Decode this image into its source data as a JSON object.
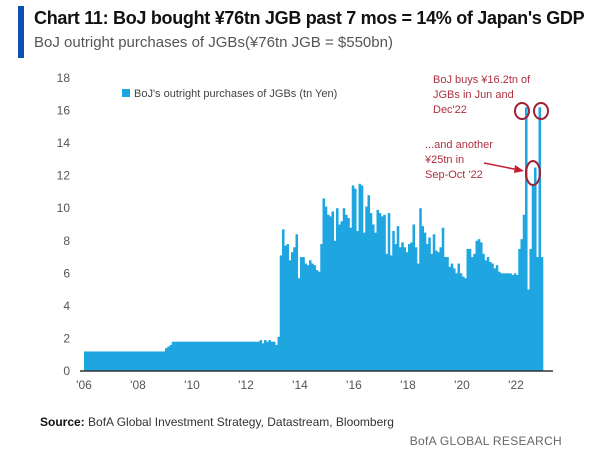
{
  "header": {
    "title": "Chart 11: BoJ bought ¥76tn JGB past 7 mos = 14% of Japan's GDP",
    "subtitle": "BoJ outright purchases of JGBs(¥76tn JGB = $550bn)"
  },
  "footer": {
    "source_label": "Source:",
    "source_text": " BofA Global Investment Strategy, Datastream, Bloomberg",
    "brand": "BofA GLOBAL RESEARCH"
  },
  "colors": {
    "bar": "#1fa6e0",
    "accent": "#0b4fb3",
    "annotation": "#b03040"
  },
  "chart_data": {
    "type": "bar",
    "title": "BoJ outright purchases of JGBs",
    "xlabel": "",
    "ylabel": "",
    "ylim": [
      0,
      18
    ],
    "yticks": [
      0,
      2,
      4,
      6,
      8,
      10,
      12,
      14,
      16,
      18
    ],
    "xtick_labels": [
      "'06",
      "'08",
      "'10",
      "'12",
      "'14",
      "'16",
      "'18",
      "'20",
      "'22"
    ],
    "xtick_years": [
      2006,
      2008,
      2010,
      2012,
      2014,
      2016,
      2018,
      2020,
      2022
    ],
    "x_start": 2006,
    "frequency": "monthly",
    "legend": {
      "label": "BoJ's outright purchases of JGBs (tn Yen)",
      "placement": "top-left"
    },
    "annotations": [
      {
        "text": [
          "BoJ buys ¥16.2tn of",
          "JGBs in Jun and",
          "Dec'22"
        ]
      },
      {
        "text": [
          "...and another",
          "¥25tn in",
          "Sep-Oct '22"
        ]
      }
    ],
    "values": [
      1.2,
      1.2,
      1.2,
      1.2,
      1.2,
      1.2,
      1.2,
      1.2,
      1.2,
      1.2,
      1.2,
      1.2,
      1.2,
      1.2,
      1.2,
      1.2,
      1.2,
      1.2,
      1.2,
      1.2,
      1.2,
      1.2,
      1.2,
      1.2,
      1.2,
      1.2,
      1.2,
      1.2,
      1.2,
      1.2,
      1.2,
      1.2,
      1.2,
      1.2,
      1.2,
      1.2,
      1.4,
      1.5,
      1.6,
      1.8,
      1.8,
      1.8,
      1.8,
      1.8,
      1.8,
      1.8,
      1.8,
      1.8,
      1.8,
      1.8,
      1.8,
      1.8,
      1.8,
      1.8,
      1.8,
      1.8,
      1.8,
      1.8,
      1.8,
      1.8,
      1.8,
      1.8,
      1.8,
      1.8,
      1.8,
      1.8,
      1.8,
      1.8,
      1.8,
      1.8,
      1.8,
      1.8,
      1.8,
      1.8,
      1.8,
      1.8,
      1.8,
      1.8,
      1.9,
      1.7,
      1.9,
      1.8,
      1.9,
      1.8,
      1.8,
      1.6,
      2.1,
      7.1,
      8.7,
      7.7,
      7.8,
      6.8,
      7.3,
      7.6,
      8.4,
      5.7,
      7.0,
      7.0,
      6.6,
      6.5,
      6.8,
      6.6,
      6.5,
      6.2,
      6.1,
      7.8,
      10.6,
      10.1,
      9.6,
      9.5,
      9.8,
      8.0,
      10.0,
      9.0,
      9.2,
      10.0,
      9.6,
      9.4,
      8.8,
      11.4,
      11.2,
      8.6,
      11.5,
      11.4,
      8.5,
      10.1,
      10.8,
      9.7,
      9.0,
      8.5,
      9.9,
      9.7,
      9.5,
      9.6,
      7.2,
      9.7,
      7.1,
      8.6,
      7.8,
      8.9,
      7.6,
      7.9,
      7.6,
      7.3,
      7.8,
      7.9,
      9.0,
      7.6,
      6.6,
      10.0,
      8.9,
      8.5,
      7.8,
      8.2,
      7.2,
      8.4,
      7.4,
      7.3,
      7.6,
      8.8,
      7.0,
      7.0,
      6.4,
      6.6,
      6.3,
      6.0,
      6.6,
      6.0,
      5.8,
      5.7,
      7.5,
      7.5,
      7.0,
      7.2,
      8.0,
      8.1,
      7.9,
      7.2,
      6.8,
      7.0,
      6.7,
      6.6,
      6.3,
      6.5,
      6.1,
      6.0,
      6.0,
      6.0,
      6.0,
      6.0,
      5.9,
      6.0,
      5.9,
      7.5,
      8.1,
      9.6,
      16.2,
      5.0,
      7.5,
      11.5,
      12.5,
      7.0,
      16.2,
      7.0
    ]
  }
}
